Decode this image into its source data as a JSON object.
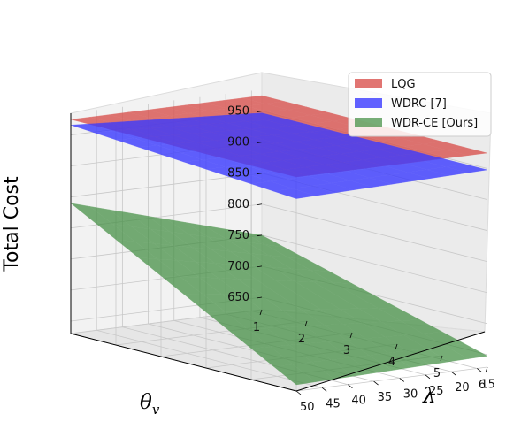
{
  "chart_data": {
    "type": "surface",
    "xlabel": "θ",
    "xlabel_sub": "v",
    "ylabel": "λ",
    "zlabel": "Total Cost",
    "x_ticks": [
      "1",
      "2",
      "3",
      "4",
      "5",
      "6"
    ],
    "y_ticks": [
      "15",
      "20",
      "25",
      "30",
      "35",
      "40",
      "45",
      "50"
    ],
    "z_ticks": [
      "650",
      "700",
      "750",
      "800",
      "850",
      "900",
      "950"
    ],
    "xlim": [
      1,
      6
    ],
    "ylim": [
      13,
      50
    ],
    "zlim": [
      630,
      985
    ],
    "grid": true,
    "legend_position": "top-right",
    "series": [
      {
        "name": "LQG",
        "color": "#d9534f",
        "opacity": 0.8,
        "corners": {
          "x1_y13": 975,
          "x6_y13": 975,
          "x1_y50": 975,
          "x6_y50": 975
        }
      },
      {
        "name": "WDRC [7]",
        "color": "#3a3aff",
        "opacity": 0.8,
        "corners": {
          "x1_y13": 947,
          "x6_y13": 948,
          "x1_y50": 966,
          "x6_y50": 940
        }
      },
      {
        "name": "WDR-CE [Ours]",
        "color": "#3d8b3d",
        "opacity": 0.7,
        "corners": {
          "x1_y13": 750,
          "x6_y13": 648,
          "x1_y50": 840,
          "x6_y50": 640
        }
      }
    ]
  }
}
